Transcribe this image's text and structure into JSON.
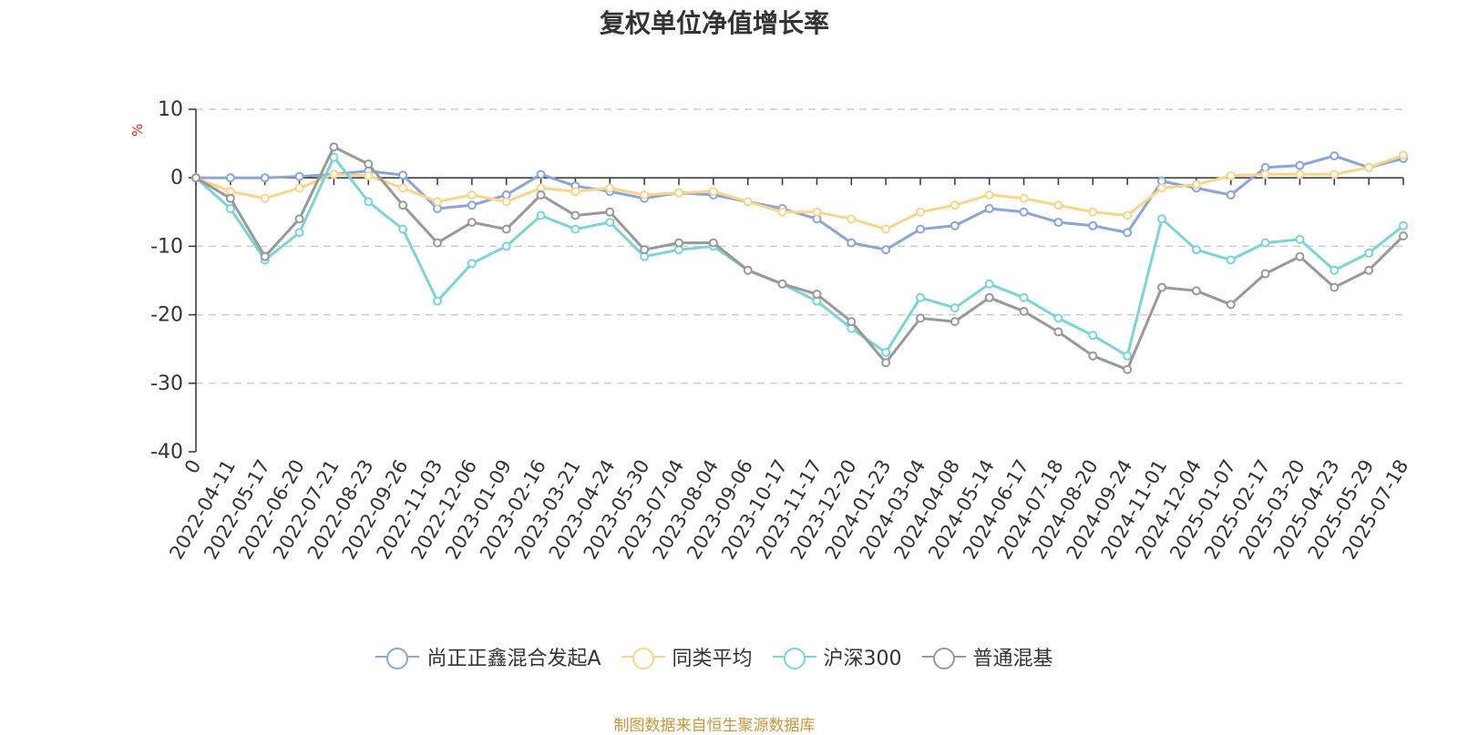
{
  "chart_data": {
    "type": "line",
    "title": "复权单位净值增长率",
    "ylabel": "%",
    "ylim": [
      -40,
      10
    ],
    "yticks": [
      10,
      0,
      -10,
      -20,
      -30,
      -40
    ],
    "grid": true,
    "legend_position": "bottom",
    "categories": [
      "0",
      "2022-04-11",
      "2022-05-17",
      "2022-06-20",
      "2022-07-21",
      "2022-08-23",
      "2022-09-26",
      "2022-11-03",
      "2022-12-06",
      "2023-01-09",
      "2023-02-16",
      "2023-03-21",
      "2023-04-24",
      "2023-05-30",
      "2023-07-04",
      "2023-08-04",
      "2023-09-06",
      "2023-10-17",
      "2023-11-17",
      "2023-12-20",
      "2024-01-23",
      "2024-03-04",
      "2024-04-08",
      "2024-05-14",
      "2024-06-17",
      "2024-07-18",
      "2024-08-20",
      "2024-09-24",
      "2024-11-01",
      "2024-12-04",
      "2025-01-07",
      "2025-02-17",
      "2025-03-20",
      "2025-04-23",
      "2025-05-29",
      "2025-07-18"
    ],
    "series": [
      {
        "name": "尚正正鑫混合发起A",
        "color": "#88a6d8",
        "values": [
          0,
          0,
          0,
          0.2,
          0.5,
          1.0,
          0.4,
          -4.5,
          -4.0,
          -2.5,
          0.5,
          -1.2,
          -2.0,
          -3.0,
          -2.2,
          -2.5,
          -3.5,
          -4.5,
          -6.0,
          -9.5,
          -10.5,
          -7.5,
          -7.0,
          -4.5,
          -5.0,
          -6.5,
          -7.0,
          -8.0,
          -0.5,
          -1.5,
          -2.5,
          1.5,
          1.8,
          3.2,
          1.5,
          2.8
        ]
      },
      {
        "name": "同类平均",
        "color": "#fad48b",
        "values": [
          0,
          -2.0,
          -3.0,
          -1.5,
          0.5,
          0.3,
          -1.5,
          -3.5,
          -2.5,
          -3.5,
          -1.5,
          -2.0,
          -1.5,
          -2.5,
          -2.2,
          -2.0,
          -3.5,
          -5.0,
          -5.0,
          -6.0,
          -7.5,
          -5.0,
          -4.0,
          -2.5,
          -3.0,
          -4.0,
          -5.0,
          -5.5,
          -1.5,
          -1.0,
          0.3,
          0.5,
          0.5,
          0.5,
          1.5,
          3.3
        ]
      },
      {
        "name": "沪深300",
        "color": "#7cd4d8",
        "values": [
          0,
          -4.5,
          -12.0,
          -8.0,
          3.0,
          -3.5,
          -7.5,
          -18.0,
          -12.5,
          -10.0,
          -5.5,
          -7.5,
          -6.5,
          -11.5,
          -10.5,
          -10.0,
          -13.5,
          -15.5,
          -18.0,
          -22.0,
          -25.5,
          -17.5,
          -19.0,
          -15.5,
          -17.5,
          -20.5,
          -23.0,
          -26.0,
          -6.0,
          -10.5,
          -12.0,
          -9.5,
          -9.0,
          -13.5,
          -11.0,
          -7.0
        ]
      },
      {
        "name": "普通混基",
        "color": "#999999",
        "values": [
          0,
          -3.0,
          -11.5,
          -6.0,
          4.5,
          2.0,
          -4.0,
          -9.5,
          -6.5,
          -7.5,
          -2.5,
          -5.5,
          -5.0,
          -10.5,
          -9.5,
          -9.5,
          -13.5,
          -15.5,
          -17.0,
          -21.0,
          -27.0,
          -20.5,
          -21.0,
          -17.5,
          -19.5,
          -22.5,
          -26.0,
          -28.0,
          -16.0,
          -16.5,
          -18.5,
          -14.0,
          -11.5,
          -16.0,
          -13.5,
          -8.5
        ]
      }
    ]
  },
  "source_note": "制图数据来自恒生聚源数据库"
}
